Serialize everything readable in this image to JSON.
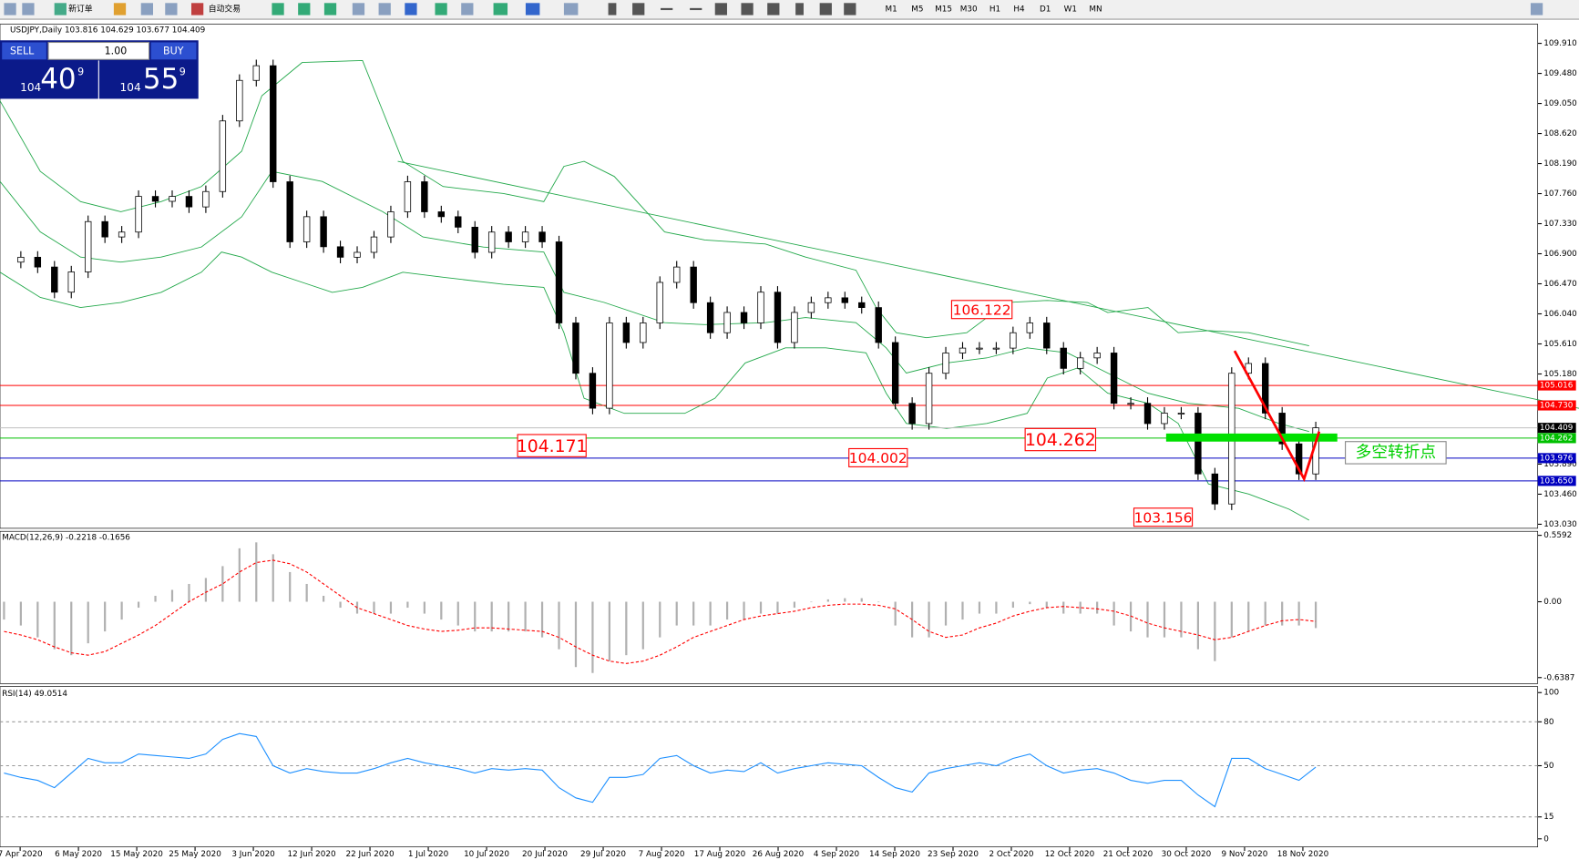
{
  "toolbar": {
    "new_order": "新订单",
    "auto_trade": "自动交易",
    "timeframes": [
      "M1",
      "M5",
      "M15",
      "M30",
      "H1",
      "H4",
      "D1",
      "W1",
      "MN"
    ]
  },
  "trade_panel": {
    "sell": "SELL",
    "buy": "BUY",
    "lot": "1.00",
    "sell_price": {
      "big": "104",
      "main": "40",
      "sup": "9"
    },
    "buy_price": {
      "big": "104",
      "main": "55",
      "sup": "9"
    }
  },
  "header": "USDJPY,Daily  103.816 104.629 103.677 104.409",
  "x_labels": [
    "7 Apr 2020",
    "6 May 2020",
    "15 May 2020",
    "25 May 2020",
    "3 Jun 2020",
    "12 Jun 2020",
    "22 Jun 2020",
    "1 Jul 2020",
    "10 Jul 2020",
    "20 Jul 2020",
    "29 Jul 2020",
    "7 Aug 2020",
    "17 Aug 2020",
    "26 Aug 2020",
    "4 Sep 2020",
    "14 Sep 2020",
    "23 Sep 2020",
    "2 Oct 2020",
    "12 Oct 2020",
    "21 Oct 2020",
    "30 Oct 2020",
    "9 Nov 2020",
    "18 Nov 2020"
  ],
  "price": {
    "ylim": [
      102.972,
      110.184
    ],
    "yticks": [
      {
        "value": 109.91,
        "label": "109.910"
      },
      {
        "value": 109.48,
        "label": "109.480"
      },
      {
        "value": 109.05,
        "label": "109.050"
      },
      {
        "value": 108.62,
        "label": "108.620"
      },
      {
        "value": 108.19,
        "label": "108.190"
      },
      {
        "value": 107.76,
        "label": "107.760"
      },
      {
        "value": 107.33,
        "label": "107.330"
      },
      {
        "value": 106.9,
        "label": "106.900"
      },
      {
        "value": 106.47,
        "label": "106.470"
      },
      {
        "value": 106.04,
        "label": "106.040"
      },
      {
        "value": 105.61,
        "label": "105.610"
      },
      {
        "value": 105.18,
        "label": "105.180"
      },
      {
        "value": 103.89,
        "label": "103.890"
      },
      {
        "value": 103.46,
        "label": "103.460"
      },
      {
        "value": 103.03,
        "label": "103.030"
      }
    ],
    "closes": [
      106.78,
      106.85,
      106.71,
      106.35,
      106.64,
      107.36,
      107.14,
      107.21,
      107.72,
      107.65,
      107.72,
      107.57,
      107.79,
      108.8,
      109.38,
      109.59,
      107.93,
      107.07,
      107.43,
      107.0,
      106.85,
      106.92,
      107.14,
      107.5,
      107.93,
      107.5,
      107.43,
      107.28,
      106.92,
      107.21,
      107.07,
      107.21,
      107.07,
      105.91,
      105.19,
      104.69,
      105.91,
      105.63,
      105.91,
      106.49,
      106.71,
      106.2,
      105.77,
      106.06,
      105.91,
      106.35,
      105.63,
      106.06,
      106.2,
      106.27,
      106.2,
      106.13,
      105.63,
      104.76,
      104.47,
      105.19,
      105.48,
      105.55,
      105.55,
      105.55,
      105.77,
      105.91,
      105.55,
      105.26,
      105.41,
      105.48,
      104.76,
      104.76,
      104.47,
      104.62,
      104.62,
      103.75,
      103.32,
      105.19,
      105.33,
      104.62,
      104.18,
      103.75,
      104.41
    ],
    "levels": [
      {
        "value": 105.016,
        "label": "105.016",
        "color": "#ff0000"
      },
      {
        "value": 104.73,
        "label": "104.730",
        "color": "#ff0000"
      },
      {
        "value": 104.409,
        "label": "104.409",
        "color": "#c0c0c0"
      },
      {
        "value": 104.262,
        "label": "104.262",
        "color": "#00c000"
      },
      {
        "value": 103.976,
        "label": "103.976",
        "color": "#0000c0"
      },
      {
        "value": 103.65,
        "label": "103.650",
        "color": "#0000c0"
      }
    ],
    "annotations": [
      "106.122",
      "104.171",
      "104.002",
      "104.262",
      "103.156"
    ],
    "note": "多空转折点"
  },
  "macd": {
    "label": "MACD(12,26,9) -0.2218 -0.1656",
    "ylim": [
      -0.689,
      0.593
    ],
    "yticks": [
      0.5592,
      {
        "value": 0,
        "label": "0.00"
      },
      -0.6387
    ],
    "histogram": [
      -0.15,
      -0.2,
      -0.3,
      -0.4,
      -0.45,
      -0.35,
      -0.25,
      -0.15,
      -0.05,
      0.05,
      0.1,
      0.15,
      0.2,
      0.3,
      0.45,
      0.5,
      0.4,
      0.25,
      0.15,
      0.05,
      -0.05,
      -0.1,
      -0.1,
      -0.1,
      -0.05,
      -0.1,
      -0.15,
      -0.2,
      -0.25,
      -0.25,
      -0.25,
      -0.25,
      -0.3,
      -0.4,
      -0.55,
      -0.6,
      -0.5,
      -0.45,
      -0.4,
      -0.3,
      -0.2,
      -0.2,
      -0.2,
      -0.15,
      -0.15,
      -0.1,
      -0.1,
      -0.05,
      0.0,
      0.02,
      0.03,
      0.03,
      0.0,
      -0.2,
      -0.3,
      -0.3,
      -0.2,
      -0.15,
      -0.1,
      -0.1,
      -0.05,
      -0.02,
      -0.05,
      -0.1,
      -0.1,
      -0.1,
      -0.2,
      -0.25,
      -0.3,
      -0.3,
      -0.3,
      -0.4,
      -0.5,
      -0.3,
      -0.25,
      -0.2,
      -0.2,
      -0.2,
      -0.2218
    ],
    "signal": [
      -0.25,
      -0.28,
      -0.32,
      -0.38,
      -0.43,
      -0.45,
      -0.42,
      -0.35,
      -0.28,
      -0.2,
      -0.1,
      0.0,
      0.08,
      0.15,
      0.25,
      0.33,
      0.35,
      0.32,
      0.25,
      0.15,
      0.05,
      -0.05,
      -0.1,
      -0.15,
      -0.2,
      -0.23,
      -0.25,
      -0.24,
      -0.22,
      -0.22,
      -0.23,
      -0.24,
      -0.25,
      -0.3,
      -0.38,
      -0.45,
      -0.5,
      -0.52,
      -0.5,
      -0.45,
      -0.38,
      -0.3,
      -0.25,
      -0.2,
      -0.15,
      -0.12,
      -0.1,
      -0.08,
      -0.05,
      -0.03,
      -0.02,
      -0.02,
      -0.03,
      -0.06,
      -0.15,
      -0.25,
      -0.3,
      -0.28,
      -0.22,
      -0.18,
      -0.12,
      -0.08,
      -0.05,
      -0.04,
      -0.05,
      -0.06,
      -0.08,
      -0.12,
      -0.18,
      -0.22,
      -0.25,
      -0.28,
      -0.32,
      -0.3,
      -0.25,
      -0.2,
      -0.16,
      -0.15,
      -0.1656
    ]
  },
  "rsi": {
    "label": "RSI(14) 49.0514",
    "ylim": [
      -5.5,
      104.1
    ],
    "yticks": [
      100,
      80,
      50,
      15,
      0
    ],
    "levels": [
      80,
      50,
      15
    ],
    "values": [
      45,
      42,
      40,
      35,
      45,
      55,
      52,
      52,
      58,
      57,
      56,
      55,
      58,
      68,
      72,
      70,
      50,
      45,
      48,
      46,
      45,
      45,
      48,
      52,
      55,
      52,
      50,
      48,
      45,
      48,
      47,
      48,
      47,
      35,
      28,
      25,
      42,
      42,
      44,
      55,
      57,
      50,
      45,
      47,
      46,
      52,
      45,
      48,
      50,
      52,
      51,
      50,
      42,
      35,
      32,
      45,
      48,
      50,
      52,
      50,
      55,
      58,
      50,
      45,
      47,
      48,
      45,
      40,
      38,
      40,
      40,
      30,
      22,
      55,
      55,
      48,
      44,
      40,
      49.0514
    ]
  }
}
